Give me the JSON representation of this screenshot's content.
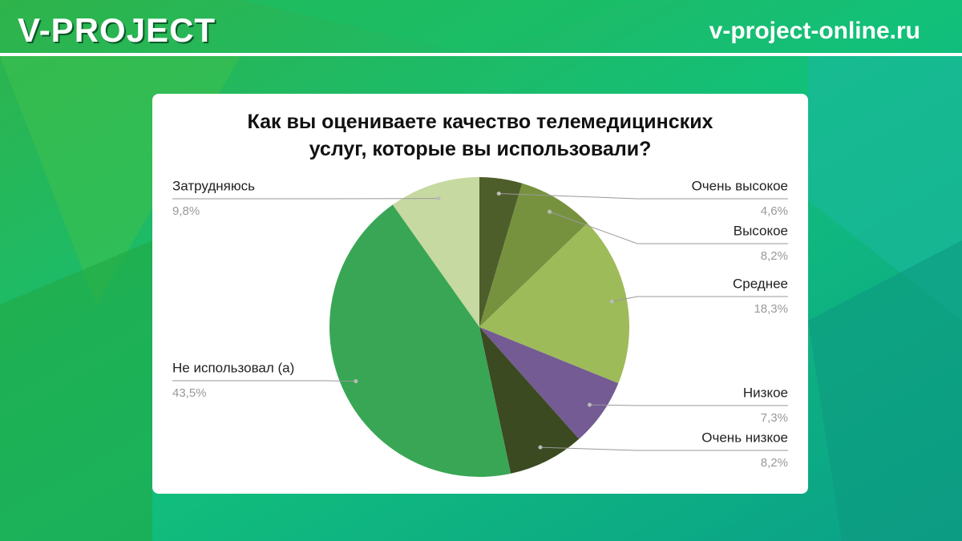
{
  "header": {
    "brand": "V-PROJECT",
    "site": "v-project-online.ru"
  },
  "chart_data": {
    "type": "pie",
    "title": "Как вы оцениваете качество телемедицинских услуг, которые вы использовали?",
    "categories": [
      "Очень высокое",
      "Высокое",
      "Среднее",
      "Низкое",
      "Очень низкое",
      "Не использовал (а)",
      "Затрудняюсь"
    ],
    "values": [
      4.6,
      8.2,
      18.3,
      7.3,
      8.2,
      43.5,
      9.8
    ],
    "value_labels": [
      "4,6%",
      "8,2%",
      "18,3%",
      "7,3%",
      "8,2%",
      "43,5%",
      "9,8%"
    ],
    "colors": [
      "#4e5e2a",
      "#77923f",
      "#9dbb59",
      "#745b93",
      "#3b4a21",
      "#39a655",
      "#c6d9a0"
    ]
  }
}
